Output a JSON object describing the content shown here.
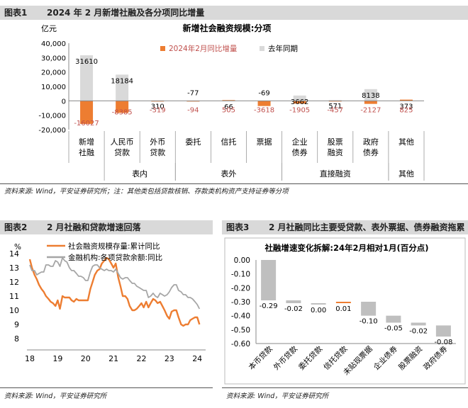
{
  "fig1": {
    "label": "图表1",
    "title": "2024 年 2 月新增社融及各分项同比增量",
    "source": "资料来源: Wind，平安证券研究所；注：其他类包括贷款核销、存款类机构资产支持证券等分项",
    "chart_data": {
      "type": "bar",
      "title": "新增社会融资规模:分项",
      "ylabel": "亿元",
      "ylim": [
        -20000,
        40000
      ],
      "yticks": [
        "40,000",
        "30,000",
        "20,000",
        "10,000",
        "0",
        "-10,000",
        "-20,000"
      ],
      "categories": [
        "新增\n社融",
        "人民币\n贷款",
        "外币\n贷款",
        "委托",
        "信托",
        "票据",
        "企业\n债券",
        "股票\n融资",
        "政府\n债券",
        "其他"
      ],
      "groups": [
        {
          "label": "表内",
          "span": [
            1,
            2
          ]
        },
        {
          "label": "表外",
          "span": [
            3,
            5
          ]
        },
        {
          "label": "直接融资",
          "span": [
            6,
            8
          ]
        },
        {
          "label": "其他",
          "span": [
            9,
            9
          ]
        }
      ],
      "series": [
        {
          "name": "2024年2月同比增量",
          "color": "#ed7d31",
          "values": [
            -16027,
            -8385,
            -319,
            -94,
            505,
            -3618,
            -1905,
            -457,
            -2127,
            825
          ]
        },
        {
          "name": "去年同期",
          "color": "#d9d9d9",
          "values": [
            31610,
            18184,
            310,
            -77,
            66,
            -69,
            3662,
            571,
            8138,
            373
          ]
        }
      ]
    }
  },
  "fig2": {
    "label": "图表2",
    "title": "2 月社融和贷款增速回落",
    "source": "资料来源: Wind，平安证券研究所",
    "chart_data": {
      "type": "line",
      "ylabel": "%",
      "ylim": [
        8,
        14
      ],
      "yticks": [
        "14",
        "13",
        "12",
        "11",
        "10",
        "9",
        "8"
      ],
      "xticks": [
        "18",
        "19",
        "20",
        "21",
        "22",
        "23",
        "24"
      ],
      "x_range": [
        2018,
        2024.3
      ],
      "series": [
        {
          "name": "社会融资规模存量:累计同比",
          "color": "#ed7d31",
          "x": [
            2018.0,
            2018.08,
            2018.17,
            2018.25,
            2018.33,
            2018.42,
            2018.5,
            2018.58,
            2018.67,
            2018.75,
            2018.83,
            2018.92,
            2019.0,
            2019.08,
            2019.17,
            2019.25,
            2019.33,
            2019.42,
            2019.5,
            2019.58,
            2019.67,
            2019.75,
            2019.83,
            2019.92,
            2020.0,
            2020.08,
            2020.17,
            2020.25,
            2020.33,
            2020.42,
            2020.5,
            2020.58,
            2020.67,
            2020.75,
            2020.83,
            2020.92,
            2021.0,
            2021.08,
            2021.17,
            2021.25,
            2021.33,
            2021.42,
            2021.5,
            2021.58,
            2021.67,
            2021.75,
            2021.83,
            2021.92,
            2022.0,
            2022.08,
            2022.17,
            2022.25,
            2022.33,
            2022.42,
            2022.5,
            2022.58,
            2022.67,
            2022.75,
            2022.83,
            2022.92,
            2023.0,
            2023.08,
            2023.17,
            2023.25,
            2023.33,
            2023.42,
            2023.5,
            2023.58,
            2023.67,
            2023.75,
            2023.83,
            2023.92,
            2024.0,
            2024.08
          ],
          "y": [
            13.6,
            13.0,
            12.5,
            12.2,
            11.8,
            11.5,
            11.3,
            11.0,
            10.8,
            10.6,
            10.5,
            10.3,
            10.7,
            10.1,
            11.0,
            10.9,
            10.9,
            10.9,
            10.7,
            10.6,
            10.8,
            10.7,
            10.7,
            10.7,
            10.7,
            10.7,
            11.5,
            12.0,
            12.5,
            12.8,
            12.9,
            13.3,
            13.5,
            13.7,
            13.6,
            13.3,
            13.0,
            13.3,
            12.3,
            11.7,
            11.0,
            11.0,
            10.8,
            10.3,
            10.0,
            10.0,
            10.1,
            10.3,
            10.5,
            10.2,
            10.6,
            10.2,
            10.5,
            10.8,
            10.7,
            10.5,
            10.6,
            10.3,
            10.0,
            9.6,
            9.4,
            9.9,
            10.0,
            10.0,
            9.5,
            9.0,
            8.9,
            9.0,
            9.0,
            9.3,
            9.4,
            9.5,
            9.5,
            9.0
          ]
        },
        {
          "name": "金融机构:各项贷款余额:同比",
          "color": "#a6a6a6",
          "x": [
            2018.0,
            2018.08,
            2018.17,
            2018.25,
            2018.33,
            2018.42,
            2018.5,
            2018.58,
            2018.67,
            2018.75,
            2018.83,
            2018.92,
            2019.0,
            2019.08,
            2019.17,
            2019.25,
            2019.33,
            2019.42,
            2019.5,
            2019.58,
            2019.67,
            2019.75,
            2019.83,
            2019.92,
            2020.0,
            2020.08,
            2020.17,
            2020.25,
            2020.33,
            2020.42,
            2020.5,
            2020.58,
            2020.67,
            2020.75,
            2020.83,
            2020.92,
            2021.0,
            2021.08,
            2021.17,
            2021.25,
            2021.33,
            2021.42,
            2021.5,
            2021.58,
            2021.67,
            2021.75,
            2021.83,
            2021.92,
            2022.0,
            2022.08,
            2022.17,
            2022.25,
            2022.33,
            2022.42,
            2022.5,
            2022.58,
            2022.67,
            2022.75,
            2022.83,
            2022.92,
            2023.0,
            2023.08,
            2023.17,
            2023.25,
            2023.33,
            2023.42,
            2023.5,
            2023.58,
            2023.67,
            2023.75,
            2023.83,
            2023.92,
            2024.0,
            2024.08
          ],
          "y": [
            13.2,
            12.8,
            12.8,
            12.5,
            12.6,
            12.7,
            12.7,
            13.2,
            13.2,
            13.1,
            13.1,
            13.5,
            13.4,
            13.1,
            13.7,
            13.5,
            13.4,
            13.0,
            12.8,
            12.8,
            12.6,
            12.4,
            12.4,
            12.3,
            12.1,
            12.1,
            12.7,
            13.1,
            13.2,
            13.2,
            13.0,
            12.9,
            12.8,
            12.9,
            12.8,
            12.8,
            12.7,
            12.9,
            12.6,
            12.3,
            12.2,
            12.3,
            12.3,
            12.1,
            11.9,
            11.9,
            11.7,
            11.6,
            11.5,
            11.4,
            11.4,
            10.9,
            11.0,
            11.2,
            11.0,
            10.9,
            11.2,
            11.1,
            11.0,
            11.1,
            11.3,
            11.6,
            11.8,
            11.8,
            11.4,
            11.3,
            11.1,
            11.1,
            10.9,
            10.9,
            10.8,
            10.6,
            10.4,
            10.1
          ]
        }
      ]
    }
  },
  "fig3": {
    "label": "图表3",
    "title": "2 月社融同比主要受贷款、表外票据、债券融资拖累",
    "source": "资料来源: Wind，平安证券研究所",
    "chart_data": {
      "type": "bar",
      "title": "社融增速变化拆解:24年2月相对1月(百分点)",
      "ylim": [
        -0.6,
        0.0
      ],
      "yticks": [
        "0.00",
        "-0.10",
        "-0.20",
        "-0.30",
        "-0.40",
        "-0.50",
        "-0.60"
      ],
      "categories": [
        "本币贷款",
        "外币贷款",
        "委托贷款",
        "信托贷款",
        "未贴现票据",
        "企业债券",
        "股票融资",
        "政府债券"
      ],
      "values": [
        -0.29,
        -0.02,
        0.0,
        0.01,
        -0.1,
        -0.05,
        -0.02,
        -0.08
      ],
      "labels": [
        "-0.29",
        "-0.02",
        "0.00",
        "0.01",
        "-0.10",
        "-0.05",
        "-0.02",
        "-0.08"
      ],
      "colors": {
        "bar": "#bfbfbf",
        "positive": "#ed7d31"
      }
    }
  }
}
